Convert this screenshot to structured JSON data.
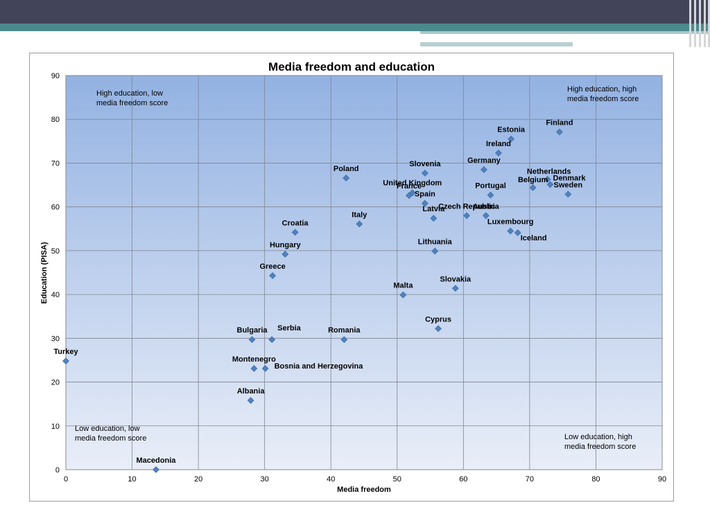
{
  "chart_data": {
    "type": "scatter",
    "title": "Media freedom and education",
    "xlabel": "Media freedom",
    "ylabel": "Education (PISA)",
    "xlim": [
      0,
      90
    ],
    "ylim": [
      0,
      90
    ],
    "x_ticks": [
      0,
      10,
      20,
      30,
      40,
      50,
      60,
      70,
      80,
      90
    ],
    "y_ticks": [
      0,
      10,
      20,
      30,
      40,
      50,
      60,
      70,
      80,
      90
    ],
    "grid": true,
    "marker_color": "#4f81bd",
    "background_gradient": [
      "#93b2e2",
      "#e9eef8"
    ],
    "quadrant_notes": {
      "top_left": [
        "High education,  low",
        "media freedom score"
      ],
      "top_right": [
        "High education,  high",
        "media freedom score"
      ],
      "bottom_left": [
        "Low education,  low",
        "media freedom score"
      ],
      "bottom_right": [
        "Low education,  high",
        "media freedom score"
      ]
    },
    "points": [
      {
        "label": "Finland",
        "x": 74.5,
        "y": 77.1
      },
      {
        "label": "Estonia",
        "x": 67.2,
        "y": 75.5
      },
      {
        "label": "Ireland",
        "x": 65.3,
        "y": 72.3
      },
      {
        "label": "Slovenia",
        "x": 54.2,
        "y": 67.7
      },
      {
        "label": "Germany",
        "x": 63.1,
        "y": 68.5
      },
      {
        "label": "Poland",
        "x": 42.3,
        "y": 66.6
      },
      {
        "label": "Netherlands",
        "x": 72.7,
        "y": 66.3
      },
      {
        "label": "Denmark",
        "x": 73.1,
        "y": 65.1
      },
      {
        "label": "Belgium",
        "x": 70.5,
        "y": 64.4
      },
      {
        "label": "Sweden",
        "x": 75.8,
        "y": 62.9
      },
      {
        "label": "United Kingdom",
        "x": 52.3,
        "y": 63.2
      },
      {
        "label": "France",
        "x": 51.8,
        "y": 62.6
      },
      {
        "label": "Spain",
        "x": 54.2,
        "y": 60.8
      },
      {
        "label": "Portugal",
        "x": 64.1,
        "y": 62.7
      },
      {
        "label": "Latvia",
        "x": 55.5,
        "y": 57.4
      },
      {
        "label": "Czech Republic",
        "x": 60.5,
        "y": 58.0
      },
      {
        "label": "Austria",
        "x": 63.4,
        "y": 58.0
      },
      {
        "label": "Luxembourg",
        "x": 67.1,
        "y": 54.5
      },
      {
        "label": "Iceland",
        "x": 68.2,
        "y": 54.1
      },
      {
        "label": "Italy",
        "x": 44.3,
        "y": 56.1
      },
      {
        "label": "Croatia",
        "x": 34.6,
        "y": 54.2
      },
      {
        "label": "Lithuania",
        "x": 55.7,
        "y": 49.9
      },
      {
        "label": "Hungary",
        "x": 33.1,
        "y": 49.2
      },
      {
        "label": "Greece",
        "x": 31.2,
        "y": 44.3
      },
      {
        "label": "Slovakia",
        "x": 58.8,
        "y": 41.4
      },
      {
        "label": "Malta",
        "x": 50.9,
        "y": 39.9
      },
      {
        "label": "Cyprus",
        "x": 56.2,
        "y": 32.2
      },
      {
        "label": "Bulgaria",
        "x": 28.1,
        "y": 29.7
      },
      {
        "label": "Serbia",
        "x": 31.1,
        "y": 29.7
      },
      {
        "label": "Romania",
        "x": 42.0,
        "y": 29.7
      },
      {
        "label": "Turkey",
        "x": 0.0,
        "y": 24.8
      },
      {
        "label": "Montenegro",
        "x": 28.4,
        "y": 23.1
      },
      {
        "label": "Bosnia and Herzegovina",
        "x": 30.1,
        "y": 23.1
      },
      {
        "label": "Albania",
        "x": 27.9,
        "y": 15.8
      },
      {
        "label": "Macedonia",
        "x": 13.6,
        "y": 0.0
      }
    ]
  }
}
